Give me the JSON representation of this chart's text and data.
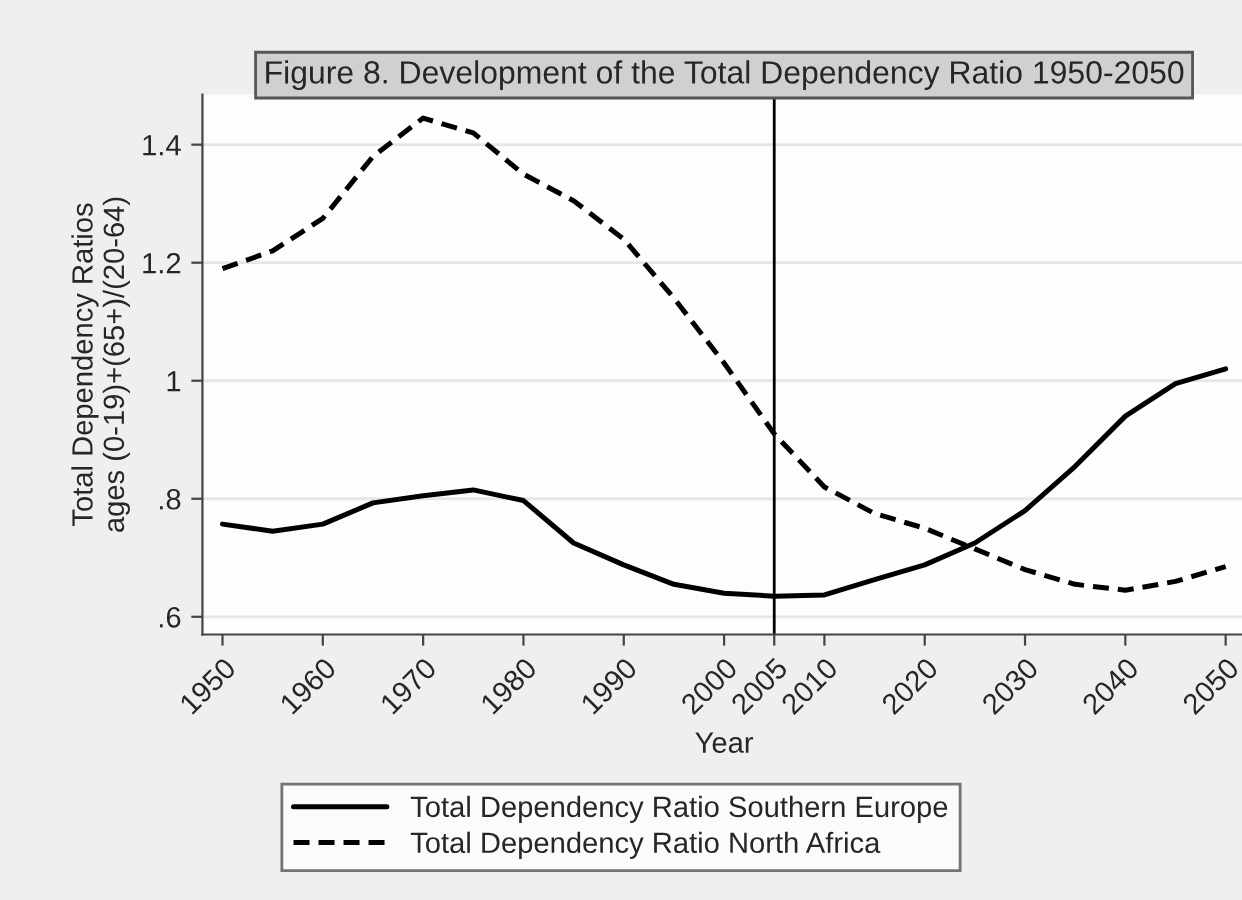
{
  "chart_data": {
    "type": "line",
    "title": "Figure 8. Development of the Total Dependency Ratio 1950-2050",
    "xlabel": "Year",
    "ylabel": "Total Dependency Ratios\nages (0-19)+(65+)/(20-64)",
    "x": [
      1950,
      1955,
      1960,
      1965,
      1970,
      1975,
      1980,
      1985,
      1990,
      1995,
      2000,
      2005,
      2010,
      2015,
      2020,
      2025,
      2030,
      2035,
      2040,
      2045,
      2050
    ],
    "series": [
      {
        "name": "Total Dependency Ratio Southern Europe",
        "color": "#000000",
        "line_style": "solid",
        "values": [
          0.757,
          0.745,
          0.757,
          0.793,
          0.805,
          0.815,
          0.797,
          0.725,
          0.688,
          0.655,
          0.64,
          0.635,
          0.637,
          0.663,
          0.688,
          0.725,
          0.78,
          0.855,
          0.94,
          0.995,
          1.02
        ]
      },
      {
        "name": "Total Dependency Ratio North Africa",
        "color": "#000000",
        "line_style": "dashed",
        "values": [
          1.19,
          1.22,
          1.275,
          1.38,
          1.445,
          1.42,
          1.35,
          1.305,
          1.24,
          1.14,
          1.03,
          0.91,
          0.82,
          0.775,
          0.75,
          0.715,
          0.68,
          0.655,
          0.645,
          0.66,
          0.685
        ]
      }
    ],
    "xlim": [
      1948,
      2052
    ],
    "ylim": [
      0.57,
      1.485
    ],
    "xticks": [
      1950,
      1960,
      1970,
      1980,
      1990,
      2000,
      2005,
      2010,
      2020,
      2030,
      2040,
      2050
    ],
    "yticks": [
      {
        "value": 0.6,
        "label": ".6"
      },
      {
        "value": 0.8,
        "label": ".8"
      },
      {
        "value": 1,
        "label": "1"
      },
      {
        "value": 1.2,
        "label": "1.2"
      },
      {
        "value": 1.4,
        "label": "1.4"
      }
    ],
    "ref_lines": [
      {
        "axis": "x",
        "value": 2005,
        "label": null,
        "color": "#000000"
      }
    ],
    "grid": "y",
    "legend": "bottom"
  }
}
